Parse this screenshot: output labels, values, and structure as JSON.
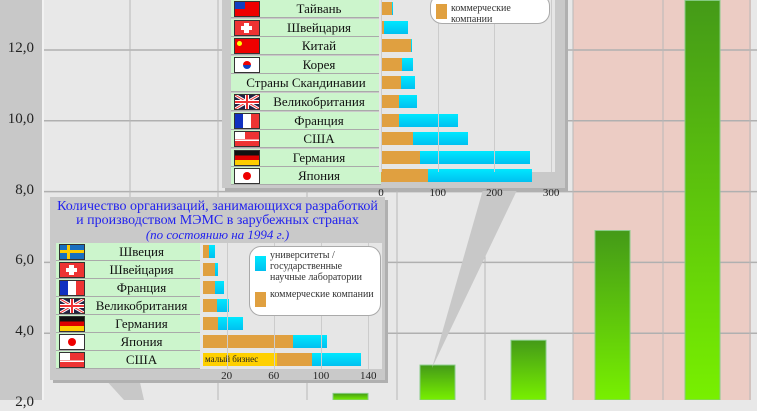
{
  "chart_data": [
    {
      "type": "bar",
      "title": "",
      "ylabel": "",
      "ylim": [
        2,
        13.5
      ],
      "y_ticks": [
        "2,0",
        "4,0",
        "6,0",
        "8,0",
        "10,0",
        "12,0"
      ],
      "values": [
        2.3,
        3.1,
        3.8,
        6.9,
        13.4
      ],
      "grid": true,
      "colors": {
        "bar": "#5cc010",
        "highlight_band": "#ecccc4"
      }
    },
    {
      "type": "bar",
      "orientation": "horizontal",
      "stacked": true,
      "title": "",
      "categories": [
        "Тайвань",
        "Швейцария",
        "Китай",
        "Корея",
        "Страны Скандинавии",
        "Великобритания",
        "Франция",
        "США",
        "Германия",
        "Япония"
      ],
      "series": [
        {
          "name": "коммерческие компании",
          "values": [
            20,
            5,
            53,
            37,
            35,
            32,
            32,
            57,
            69,
            83
          ]
        },
        {
          "name": "университеты / государственные научные лаборатории",
          "values": [
            2,
            43,
            2,
            19,
            25,
            31,
            104,
            97,
            193,
            183
          ]
        }
      ],
      "x_ticks": [
        "0",
        "100",
        "200",
        "300"
      ],
      "xlim": [
        0,
        300
      ]
    },
    {
      "type": "bar",
      "orientation": "horizontal",
      "stacked": true,
      "title": "Количество организаций, занимающихся разработкой и производством МЭМС в зарубежных странах",
      "subtitle": "(по состоянию на 1994 г.)",
      "categories": [
        "Швеция",
        "Швейцария",
        "Франция",
        "Великобритания",
        "Германия",
        "Япония",
        "США"
      ],
      "series": [
        {
          "name": "малый бизнес",
          "values": [
            0,
            0,
            0,
            0,
            0,
            0,
            63
          ]
        },
        {
          "name": "коммерческие компании",
          "values": [
            5,
            10,
            10,
            12,
            13,
            76,
            29
          ]
        },
        {
          "name": "университеты / государственные научные лаборатории",
          "values": [
            5,
            3,
            8,
            10,
            21,
            29,
            42
          ]
        }
      ],
      "x_ticks": [
        "20",
        "60",
        "100",
        "140"
      ],
      "xlim": [
        0,
        140
      ]
    }
  ],
  "legend": {
    "uni": "университеты / государственные научные лаборатории",
    "com": "коммерческие компании",
    "small": "малый бизнес"
  },
  "flags": {
    "Тайвань": "tw",
    "Швейцария": "ch",
    "Китай": "cn",
    "Корея": "kr",
    "Страны Скандинавии": "",
    "Великобритания": "gb",
    "Франция": "fr",
    "США": "us",
    "Германия": "de",
    "Япония": "jp",
    "Швеция": "se"
  }
}
